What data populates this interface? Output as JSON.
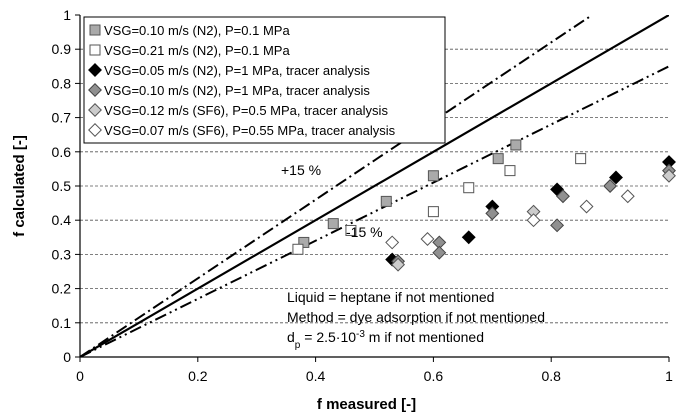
{
  "chart_data": {
    "type": "scatter",
    "title": "",
    "xlabel": "f measured [-]",
    "ylabel": "f calculated [-]",
    "xlim": [
      0,
      1
    ],
    "ylim": [
      0,
      1
    ],
    "xticks": [
      0,
      0.2,
      0.4,
      0.6,
      0.8,
      1
    ],
    "xtick_labels": [
      "0",
      "0.2",
      "0.4",
      "0.6",
      "0.8",
      "1"
    ],
    "yticks": [
      0,
      0.1,
      0.2,
      0.3,
      0.4,
      0.5,
      0.6,
      0.7,
      0.8,
      0.9,
      1
    ],
    "ytick_labels": [
      "0",
      "0.1",
      "0.2",
      "0.3",
      "0.4",
      "0.5",
      "0.6",
      "0.7",
      "0.8",
      "0.9",
      "1"
    ],
    "grid": "horizontal dashed",
    "legend_position": "top-left",
    "series": [
      {
        "name": "VSG=0.10 m/s (N2), P=0.1 MPa",
        "marker": "square",
        "fill": "#aaaaaa",
        "stroke": "#555555",
        "points": [
          [
            0.38,
            0.335
          ],
          [
            0.43,
            0.39
          ],
          [
            0.52,
            0.455
          ],
          [
            0.6,
            0.53
          ],
          [
            0.71,
            0.58
          ],
          [
            0.74,
            0.62
          ]
        ]
      },
      {
        "name": "VSG=0.21 m/s (N2), P=0.1 MPa",
        "marker": "square",
        "fill": "#ffffff",
        "stroke": "#555555",
        "points": [
          [
            0.37,
            0.315
          ],
          [
            0.46,
            0.37
          ],
          [
            0.6,
            0.425
          ],
          [
            0.66,
            0.495
          ],
          [
            0.73,
            0.545
          ],
          [
            0.85,
            0.58
          ]
        ]
      },
      {
        "name": "VSG=0.05 m/s (N2), P=1 MPa, tracer analysis",
        "marker": "diamond",
        "fill": "#000000",
        "stroke": "#000000",
        "points": [
          [
            0.53,
            0.285
          ],
          [
            0.66,
            0.35
          ],
          [
            0.7,
            0.44
          ],
          [
            0.81,
            0.49
          ],
          [
            0.91,
            0.525
          ],
          [
            1.0,
            0.57
          ]
        ]
      },
      {
        "name": "VSG=0.10 m/s (N2), P=1 MPa, tracer analysis",
        "marker": "diamond",
        "fill": "#909090",
        "stroke": "#444444",
        "points": [
          [
            0.54,
            0.28
          ],
          [
            0.61,
            0.335
          ],
          [
            0.61,
            0.305
          ],
          [
            0.7,
            0.42
          ],
          [
            0.81,
            0.385
          ],
          [
            0.82,
            0.47
          ],
          [
            0.9,
            0.5
          ],
          [
            1.0,
            0.545
          ]
        ]
      },
      {
        "name": "VSG=0.12 m/s (SF6), P=0.5 MPa, tracer analysis",
        "marker": "diamond",
        "fill": "#cccccc",
        "stroke": "#555555",
        "points": [
          [
            0.54,
            0.27
          ],
          [
            0.77,
            0.425
          ],
          [
            1.0,
            0.53
          ]
        ]
      },
      {
        "name": "VSG=0.07 m/s (SF6), P=0.55 MPa, tracer analysis",
        "marker": "diamond",
        "fill": "#ffffff",
        "stroke": "#555555",
        "points": [
          [
            0.53,
            0.335
          ],
          [
            0.59,
            0.345
          ],
          [
            0.77,
            0.4
          ],
          [
            0.86,
            0.44
          ],
          [
            0.93,
            0.47
          ]
        ]
      }
    ],
    "reference_lines": [
      {
        "kind": "solid",
        "slope": 1.0
      },
      {
        "kind": "dash-dot",
        "slope": 1.15
      },
      {
        "kind": "dash-dot-dot",
        "slope": 0.85
      }
    ],
    "annotations": {
      "plus": "+15 %",
      "minus": "-15 %",
      "liquid_note": "Liquid = heptane if not mentioned",
      "method_note": "Method = dye adsorption if not mentioned",
      "dp_prefix": "d",
      "dp_sub": "p",
      "dp_middle": " = 2.5·10",
      "dp_exp": "-3",
      "dp_suffix": " m if not mentioned"
    }
  }
}
